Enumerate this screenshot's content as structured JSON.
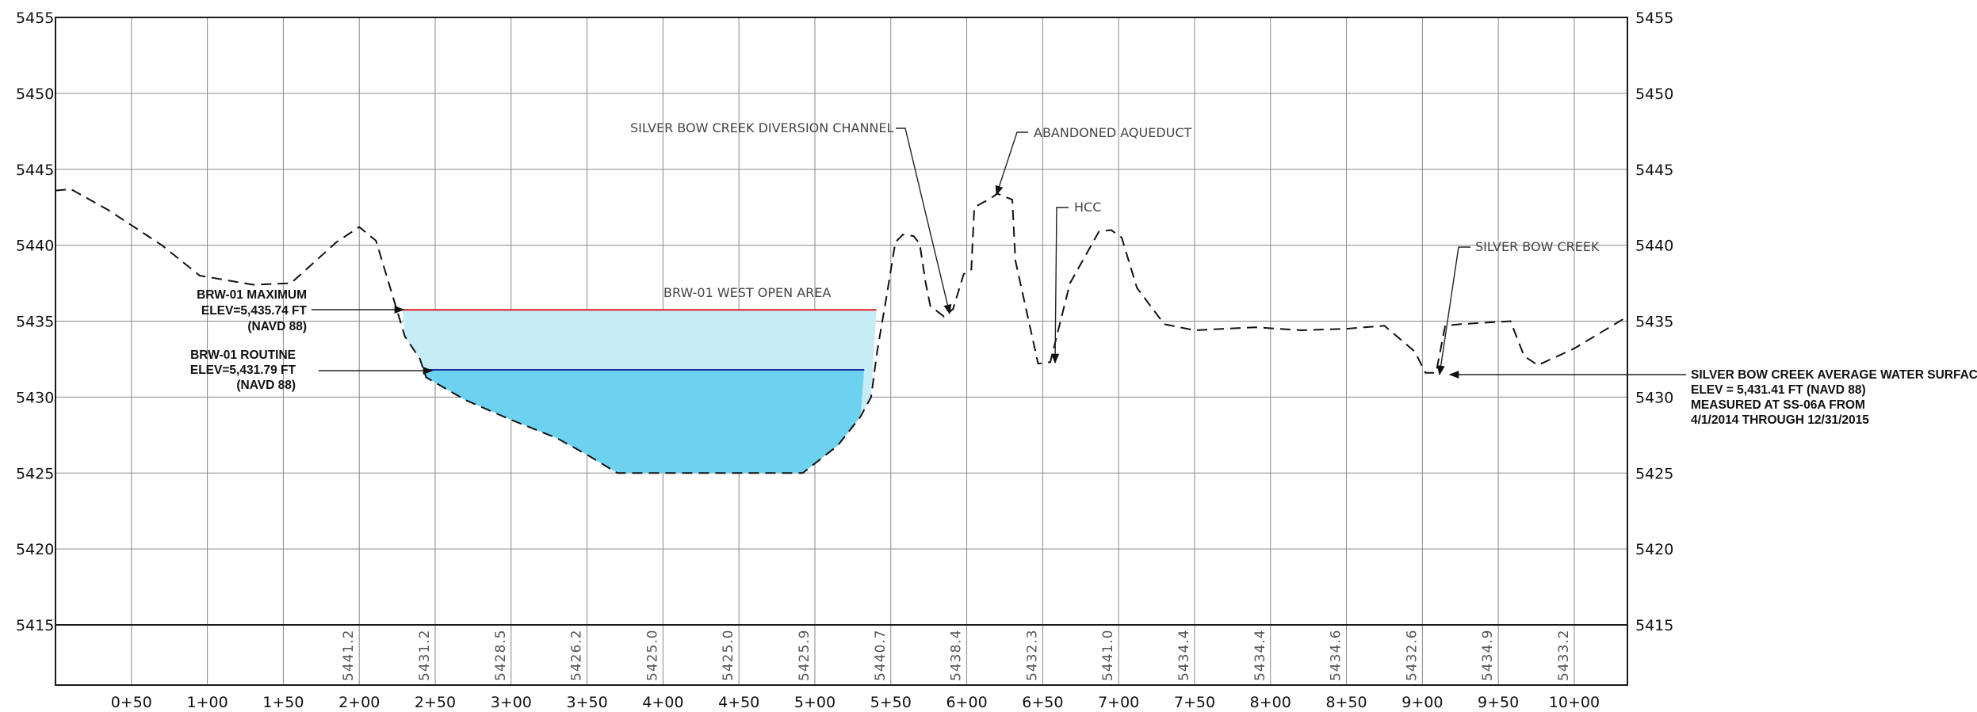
{
  "chart_data": {
    "type": "cross-section",
    "y_ticks": [
      "5455",
      "5450",
      "5445",
      "5440",
      "5435",
      "5430",
      "5425",
      "5420",
      "5415"
    ],
    "ylim": [
      5415,
      5455
    ],
    "xlim": [
      0,
      1035
    ],
    "x_ticks": [
      {
        "label": "0+50",
        "x": 50
      },
      {
        "label": "1+00",
        "x": 100
      },
      {
        "label": "1+50",
        "x": 150
      },
      {
        "label": "2+00",
        "x": 200
      },
      {
        "label": "2+50",
        "x": 250
      },
      {
        "label": "3+00",
        "x": 300
      },
      {
        "label": "3+50",
        "x": 350
      },
      {
        "label": "4+00",
        "x": 400
      },
      {
        "label": "4+50",
        "x": 450
      },
      {
        "label": "5+00",
        "x": 500
      },
      {
        "label": "5+50",
        "x": 550
      },
      {
        "label": "6+00",
        "x": 600
      },
      {
        "label": "6+50",
        "x": 650
      },
      {
        "label": "7+00",
        "x": 700
      },
      {
        "label": "7+50",
        "x": 750
      },
      {
        "label": "8+00",
        "x": 800
      },
      {
        "label": "8+50",
        "x": 850
      },
      {
        "label": "9+00",
        "x": 900
      },
      {
        "label": "9+50",
        "x": 950
      },
      {
        "label": "10+00",
        "x": 1000
      }
    ],
    "ground_elevations": [
      {
        "label": "5441.2",
        "x": 200
      },
      {
        "label": "5431.2",
        "x": 250
      },
      {
        "label": "5428.5",
        "x": 300
      },
      {
        "label": "5426.2",
        "x": 350
      },
      {
        "label": "5425.0",
        "x": 400
      },
      {
        "label": "5425.0",
        "x": 450
      },
      {
        "label": "5425.9",
        "x": 500
      },
      {
        "label": "5440.7",
        "x": 550
      },
      {
        "label": "5438.4",
        "x": 600
      },
      {
        "label": "5432.3",
        "x": 650
      },
      {
        "label": "5441.0",
        "x": 700
      },
      {
        "label": "5434.4",
        "x": 750
      },
      {
        "label": "5434.4",
        "x": 800
      },
      {
        "label": "5434.6",
        "x": 850
      },
      {
        "label": "5432.6",
        "x": 900
      },
      {
        "label": "5434.9",
        "x": 950
      },
      {
        "label": "5433.2",
        "x": 1000
      }
    ],
    "ground_profile": [
      [
        0,
        5443.6
      ],
      [
        10,
        5443.7
      ],
      [
        35,
        5442.3
      ],
      [
        70,
        5440.0
      ],
      [
        95,
        5438.0
      ],
      [
        130,
        5437.4
      ],
      [
        155,
        5437.5
      ],
      [
        185,
        5440.2
      ],
      [
        200,
        5441.2
      ],
      [
        211,
        5440.3
      ],
      [
        230,
        5434.0
      ],
      [
        240,
        5432.5
      ],
      [
        244,
        5431.3
      ],
      [
        270,
        5429.8
      ],
      [
        300,
        5428.5
      ],
      [
        330,
        5427.3
      ],
      [
        350,
        5426.2
      ],
      [
        370,
        5425.0
      ],
      [
        400,
        5425.0
      ],
      [
        450,
        5425.0
      ],
      [
        492,
        5425.0
      ],
      [
        515,
        5426.8
      ],
      [
        530,
        5428.7
      ],
      [
        537,
        5430.0
      ],
      [
        541,
        5433.0
      ],
      [
        547,
        5436.5
      ],
      [
        553,
        5440.2
      ],
      [
        558,
        5440.7
      ],
      [
        565,
        5440.6
      ],
      [
        569,
        5440.1
      ],
      [
        573,
        5437.5
      ],
      [
        576,
        5436.0
      ],
      [
        585,
        5435.3
      ],
      [
        591,
        5435.8
      ],
      [
        598,
        5438.1
      ],
      [
        603,
        5438.4
      ],
      [
        605,
        5442.5
      ],
      [
        616,
        5443.1
      ],
      [
        620,
        5443.4
      ],
      [
        630,
        5443.0
      ],
      [
        632,
        5439.0
      ],
      [
        647,
        5432.2
      ],
      [
        655,
        5432.3
      ],
      [
        668,
        5437.5
      ],
      [
        687,
        5440.9
      ],
      [
        695,
        5441.0
      ],
      [
        702,
        5440.5
      ],
      [
        712,
        5437.2
      ],
      [
        730,
        5434.8
      ],
      [
        750,
        5434.4
      ],
      [
        790,
        5434.6
      ],
      [
        820,
        5434.4
      ],
      [
        850,
        5434.5
      ],
      [
        875,
        5434.7
      ],
      [
        895,
        5433.0
      ],
      [
        902,
        5431.6
      ],
      [
        909,
        5431.6
      ],
      [
        915,
        5434.7
      ],
      [
        925,
        5434.8
      ],
      [
        958,
        5435.0
      ],
      [
        967,
        5432.7
      ],
      [
        976,
        5432.1
      ],
      [
        1000,
        5433.2
      ],
      [
        1035,
        5435.3
      ]
    ],
    "water_surfaces": [
      {
        "name": "BRW-01 MAXIMUM",
        "elevation": 5435.74,
        "from": 228.5,
        "to": 540.5,
        "line_color": "#dc1f26",
        "fill_color": "#c6ecf6"
      },
      {
        "name": "BRW-01 ROUTINE",
        "elevation": 5431.79,
        "from": 243,
        "to": 532.5,
        "line_color": "#1b2f98",
        "fill_color": "#6dd2ef"
      }
    ]
  },
  "labels": {
    "area": "BRW-01 WEST OPEN AREA",
    "diversion_channel": "SILVER BOW CREEK DIVERSION CHANNEL",
    "aqueduct": "ABANDONED AQUEDUCT",
    "hcc": "HCC",
    "silver_bow_creek": "SILVER BOW CREEK",
    "max_note": [
      "BRW-01 MAXIMUM",
      "ELEV=5,435.74 FT",
      "(NAVD 88)"
    ],
    "routine_note": [
      "BRW-01 ROUTINE",
      "ELEV=5,431.79 FT",
      "(NAVD 88)"
    ],
    "creek_note": [
      "SILVER BOW CREEK AVERAGE WATER SURFACE",
      "ELEV = 5,431.41 FT (NAVD 88)",
      "MEASURED AT SS-06A FROM",
      "4/1/2014 THROUGH 12/31/2015"
    ]
  }
}
